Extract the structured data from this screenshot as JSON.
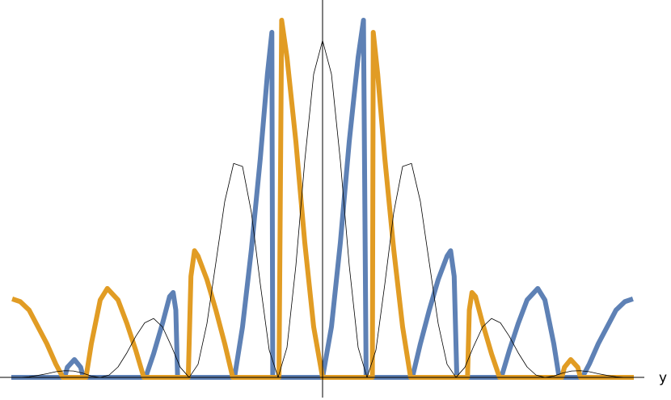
{
  "chart_data": {
    "type": "line",
    "xlabel": "y",
    "xlim": [
      -3.627,
      3.618
    ],
    "ylim": [
      -0.067,
      1.12
    ],
    "series": [
      {
        "color": "#5e81b5",
        "width": 6,
        "x": [
          -3.5,
          -2.9,
          -2.87,
          -2.79,
          -2.72,
          -2.69,
          -1.99,
          -1.9,
          -1.8,
          -1.72,
          -1.68,
          -1.65,
          -1.63,
          -0.99,
          -0.9,
          -0.8,
          -0.7,
          -0.62,
          -0.57,
          -0.56,
          0,
          0.1,
          0.2,
          0.3,
          0.4,
          0.46,
          0.49,
          1.01,
          1.1,
          1.2,
          1.3,
          1.4,
          1.44,
          1.48,
          1.51,
          2.01,
          2.1,
          2.2,
          2.3,
          2.42,
          2.5,
          2.6,
          2.66,
          2.92,
          3.0,
          3.1,
          3.2,
          3.3,
          3.4,
          3.49
        ],
        "values": [
          0,
          0,
          0.03,
          0.053,
          0.03,
          0,
          0,
          0.07,
          0.16,
          0.24,
          0.252,
          0.2,
          0,
          0,
          0.15,
          0.38,
          0.65,
          0.9,
          1.024,
          0,
          0,
          0.15,
          0.4,
          0.7,
          0.95,
          1.06,
          0,
          0,
          0.1,
          0.2,
          0.29,
          0.36,
          0.376,
          0.3,
          0,
          0,
          0.08,
          0.16,
          0.23,
          0.264,
          0.23,
          0.1,
          0,
          0,
          0.04,
          0.1,
          0.15,
          0.2,
          0.225,
          0.233
        ]
      },
      {
        "color": "#e19c24",
        "width": 6,
        "x": [
          -3.49,
          -3.4,
          -3.3,
          -3.2,
          -3.1,
          -3.0,
          -2.92,
          -2.66,
          -2.6,
          -2.5,
          -2.42,
          -2.3,
          -2.2,
          -2.1,
          -2.01,
          -1.51,
          -1.48,
          -1.44,
          -1.4,
          -1.3,
          -1.2,
          -1.1,
          -1.01,
          -0.49,
          -0.46,
          -0.4,
          -0.3,
          -0.2,
          -0.1,
          0,
          0.56,
          0.57,
          0.62,
          0.7,
          0.8,
          0.9,
          0.99,
          1.63,
          1.65,
          1.68,
          1.72,
          1.8,
          1.9,
          1.99,
          2.69,
          2.72,
          2.79,
          2.87,
          2.9,
          3.5
        ],
        "values": [
          0.233,
          0.225,
          0.2,
          0.15,
          0.1,
          0.04,
          0,
          0,
          0.1,
          0.23,
          0.264,
          0.23,
          0.16,
          0.08,
          0,
          0,
          0.3,
          0.376,
          0.36,
          0.29,
          0.2,
          0.1,
          0,
          0,
          1.06,
          0.95,
          0.7,
          0.4,
          0.15,
          0,
          0,
          1.024,
          0.9,
          0.65,
          0.38,
          0.15,
          0,
          0,
          0.2,
          0.252,
          0.24,
          0.16,
          0.07,
          0,
          0,
          0.03,
          0.053,
          0.03,
          0,
          0
        ]
      },
      {
        "color": "#000000",
        "width": 0.8,
        "x": [
          -3.5,
          -3.4,
          -3.3,
          -3.2,
          -3.1,
          -3.0,
          -2.9,
          -2.8,
          -2.7,
          -2.6,
          -2.5,
          -2.4,
          -2.3,
          -2.2,
          -2.1,
          -2.0,
          -1.9,
          -1.8,
          -1.7,
          -1.6,
          -1.5,
          -1.4,
          -1.3,
          -1.2,
          -1.1,
          -1.0,
          -0.9,
          -0.8,
          -0.7,
          -0.6,
          -0.5,
          -0.4,
          -0.3,
          -0.2,
          -0.1,
          0,
          0.1,
          0.2,
          0.3,
          0.4,
          0.5,
          0.6,
          0.7,
          0.8,
          0.9,
          1.0,
          1.1,
          1.2,
          1.3,
          1.4,
          1.5,
          1.6,
          1.7,
          1.8,
          1.9,
          2.0,
          2.1,
          2.2,
          2.3,
          2.4,
          2.5,
          2.6,
          2.7,
          2.8,
          2.9,
          3.0,
          3.1,
          3.2,
          3.3,
          3.4,
          3.5
        ],
        "values": [
          0,
          0,
          0.002,
          0.006,
          0.011,
          0.017,
          0.02,
          0.019,
          0.013,
          0.004,
          0,
          0.007,
          0.031,
          0.073,
          0.122,
          0.162,
          0.175,
          0.15,
          0.093,
          0.03,
          0,
          0.039,
          0.16,
          0.34,
          0.522,
          0.635,
          0.626,
          0.489,
          0.277,
          0.081,
          0,
          0.089,
          0.332,
          0.643,
          0.9,
          1,
          0.9,
          0.643,
          0.332,
          0.089,
          0,
          0.081,
          0.277,
          0.489,
          0.626,
          0.635,
          0.522,
          0.34,
          0.16,
          0.039,
          0,
          0.03,
          0.093,
          0.15,
          0.175,
          0.162,
          0.122,
          0.073,
          0.031,
          0.007,
          0,
          0.004,
          0.013,
          0.019,
          0.02,
          0.017,
          0.011,
          0.006,
          0.002,
          0,
          0
        ]
      }
    ]
  }
}
